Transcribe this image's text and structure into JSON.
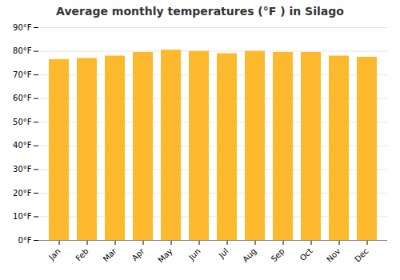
{
  "chart_data": {
    "type": "bar",
    "title": "Average monthly temperatures (°F ) in Silago",
    "categories": [
      "Jan",
      "Feb",
      "Mar",
      "Apr",
      "May",
      "Jun",
      "Jul",
      "Aug",
      "Sep",
      "Oct",
      "Nov",
      "Dec"
    ],
    "values": [
      76.5,
      77.0,
      78.0,
      79.5,
      80.5,
      80.0,
      79.0,
      80.0,
      79.5,
      79.5,
      78.0,
      77.5
    ],
    "color": "#FDB92E",
    "ylim": [
      0,
      90
    ],
    "yticks": [
      {
        "value": 0,
        "label": "0°F"
      },
      {
        "value": 10,
        "label": "10°F"
      },
      {
        "value": 20,
        "label": "20°F"
      },
      {
        "value": 30,
        "label": "30°F"
      },
      {
        "value": 40,
        "label": "40°F"
      },
      {
        "value": 50,
        "label": "50°F"
      },
      {
        "value": 60,
        "label": "60°F"
      },
      {
        "value": 70,
        "label": "70°F"
      },
      {
        "value": 80,
        "label": "80°F"
      },
      {
        "value": 90,
        "label": "90°F"
      }
    ],
    "grid": true
  }
}
